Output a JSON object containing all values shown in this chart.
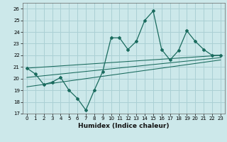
{
  "xlabel": "Humidex (Indice chaleur)",
  "bg_color": "#cce8ea",
  "grid_color": "#aad0d4",
  "line_color": "#1a6b5e",
  "xlim": [
    -0.5,
    23.5
  ],
  "ylim": [
    17,
    26.5
  ],
  "yticks": [
    17,
    18,
    19,
    20,
    21,
    22,
    23,
    24,
    25,
    26
  ],
  "xticks": [
    0,
    1,
    2,
    3,
    4,
    5,
    6,
    7,
    8,
    9,
    10,
    11,
    12,
    13,
    14,
    15,
    16,
    17,
    18,
    19,
    20,
    21,
    22,
    23
  ],
  "x": [
    0,
    1,
    2,
    3,
    4,
    5,
    6,
    7,
    8,
    9,
    10,
    11,
    12,
    13,
    14,
    15,
    16,
    17,
    18,
    19,
    20,
    21,
    22,
    23
  ],
  "main_line": [
    20.9,
    20.4,
    19.5,
    19.7,
    20.1,
    19.0,
    18.3,
    17.3,
    19.0,
    20.6,
    23.5,
    23.5,
    22.5,
    23.2,
    25.0,
    25.8,
    22.5,
    21.6,
    22.4,
    24.1,
    23.2,
    22.5,
    22.0,
    22.0
  ],
  "trend_lines": [
    {
      "x": [
        0,
        23
      ],
      "y": [
        20.9,
        22.0
      ]
    },
    {
      "x": [
        0,
        23
      ],
      "y": [
        20.1,
        21.8
      ]
    },
    {
      "x": [
        0,
        23
      ],
      "y": [
        19.3,
        21.6
      ]
    }
  ],
  "xlabel_fontsize": 6.5,
  "tick_fontsize": 5.0,
  "linewidth": 0.9,
  "markersize": 2.0
}
